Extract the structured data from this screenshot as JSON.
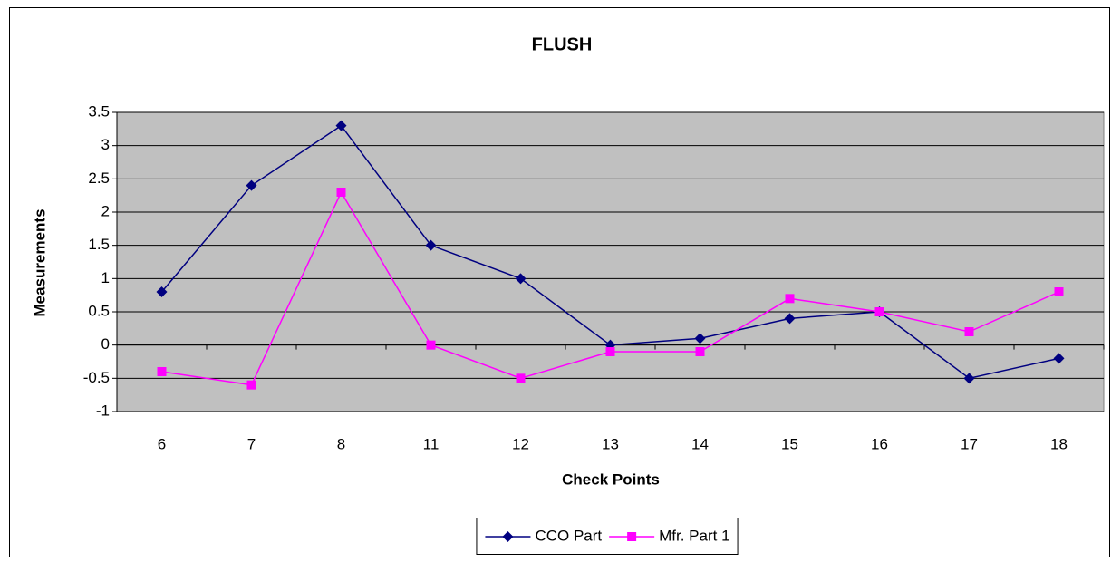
{
  "chart_data": {
    "type": "line",
    "title": "FLUSH",
    "x_label": "Check Points",
    "y_label": "Measurements",
    "categories": [
      "6",
      "7",
      "8",
      "11",
      "12",
      "13",
      "14",
      "15",
      "16",
      "17",
      "18"
    ],
    "series": [
      {
        "name": "CCO Part",
        "color": "#000080",
        "marker": "diamond",
        "values": [
          0.8,
          2.4,
          3.3,
          1.5,
          1.0,
          0,
          0.1,
          0.4,
          0.5,
          -0.5,
          -0.2
        ]
      },
      {
        "name": "Mfr. Part 1",
        "color": "#ff00ff",
        "marker": "square",
        "values": [
          -0.4,
          -0.6,
          2.3,
          0,
          -0.5,
          -0.1,
          -0.1,
          0.7,
          0.5,
          0.2,
          0.8
        ]
      }
    ],
    "ylim": [
      -1,
      3.5
    ],
    "yticks": [
      -1,
      -0.5,
      0,
      0.5,
      1,
      1.5,
      2,
      2.5,
      3,
      3.5
    ],
    "grid": true,
    "legend": "bottom",
    "plot_background": "#c0c0c0"
  }
}
